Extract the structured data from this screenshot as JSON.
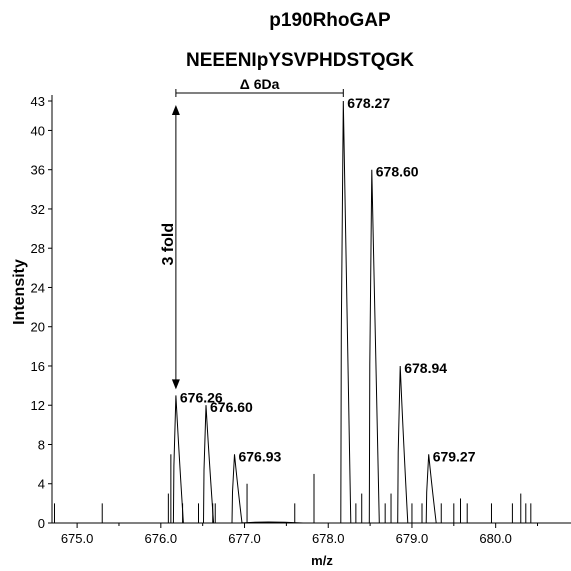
{
  "chart_data": {
    "type": "line",
    "title": "p190RhoGAP",
    "subtitle": "NEEENIpYSVPHDSTQGK",
    "xlabel": "m/z",
    "ylabel": "Intensity",
    "xlim": [
      674.7,
      680.9
    ],
    "ylim": [
      0,
      43
    ],
    "xticks": [
      675.0,
      676.0,
      677.0,
      678.0,
      679.0,
      680.0
    ],
    "xtick_labels": [
      "675.0",
      "676.0",
      "677.0",
      "678.0",
      "679.0",
      "680.0"
    ],
    "yticks": [
      0,
      4,
      8,
      12,
      16,
      20,
      24,
      28,
      32,
      36,
      40,
      43
    ],
    "grid": false,
    "peaks": [
      {
        "mz": 676.18,
        "intensity": 13.0,
        "label": "676.26"
      },
      {
        "mz": 676.54,
        "intensity": 12.0,
        "label": "676.60"
      },
      {
        "mz": 676.88,
        "intensity": 7.0,
        "label": "676.93"
      },
      {
        "mz": 678.18,
        "intensity": 43.0,
        "label": "678.27"
      },
      {
        "mz": 678.52,
        "intensity": 36.0,
        "label": "678.60"
      },
      {
        "mz": 678.86,
        "intensity": 16.0,
        "label": "678.94"
      },
      {
        "mz": 679.2,
        "intensity": 7.0,
        "label": "679.27"
      }
    ],
    "noise_spikes": [
      {
        "mz": 674.73,
        "intensity": 2.0
      },
      {
        "mz": 675.3,
        "intensity": 2.0
      },
      {
        "mz": 676.09,
        "intensity": 3.0
      },
      {
        "mz": 676.12,
        "intensity": 7.0
      },
      {
        "mz": 676.26,
        "intensity": 2.0
      },
      {
        "mz": 676.45,
        "intensity": 2.0
      },
      {
        "mz": 676.62,
        "intensity": 2.0
      },
      {
        "mz": 676.65,
        "intensity": 2.0
      },
      {
        "mz": 677.03,
        "intensity": 4.0
      },
      {
        "mz": 677.6,
        "intensity": 2.0
      },
      {
        "mz": 677.83,
        "intensity": 5.0
      },
      {
        "mz": 678.33,
        "intensity": 2.0
      },
      {
        "mz": 678.4,
        "intensity": 3.0
      },
      {
        "mz": 678.68,
        "intensity": 2.0
      },
      {
        "mz": 678.75,
        "intensity": 3.0
      },
      {
        "mz": 679.0,
        "intensity": 2.0
      },
      {
        "mz": 679.12,
        "intensity": 2.0
      },
      {
        "mz": 679.35,
        "intensity": 2.0
      },
      {
        "mz": 679.5,
        "intensity": 2.0
      },
      {
        "mz": 679.58,
        "intensity": 2.5
      },
      {
        "mz": 679.66,
        "intensity": 2.0
      },
      {
        "mz": 679.95,
        "intensity": 2.0
      },
      {
        "mz": 680.2,
        "intensity": 2.0
      },
      {
        "mz": 680.3,
        "intensity": 3.0
      },
      {
        "mz": 680.36,
        "intensity": 2.0
      },
      {
        "mz": 680.42,
        "intensity": 2.0
      }
    ],
    "annotations": {
      "delta": {
        "text": "Δ 6Da",
        "from_mz": 676.18,
        "to_mz": 678.18
      },
      "fold": {
        "text": "3  fold",
        "mz": 676.18,
        "from_intensity": 13.0,
        "to_intensity": 43.0
      }
    }
  }
}
